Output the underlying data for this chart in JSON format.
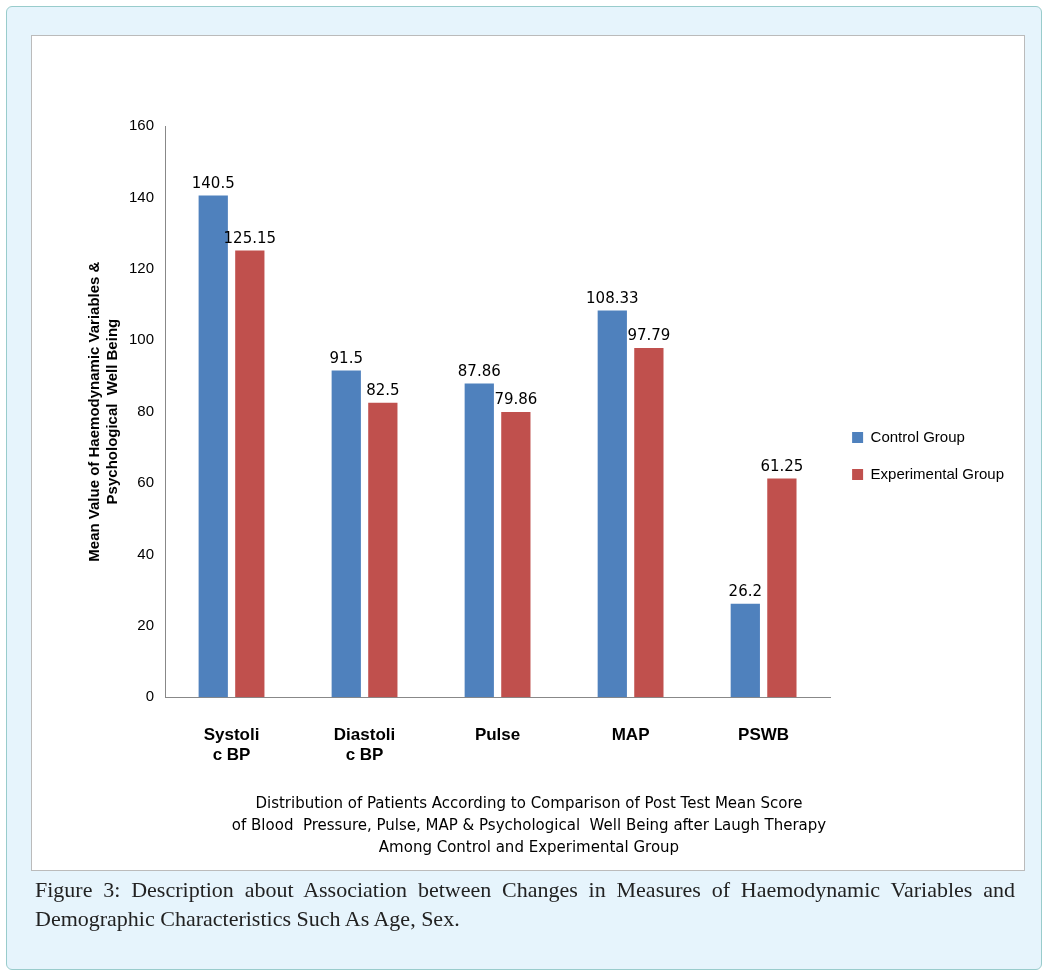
{
  "chart_data": {
    "type": "bar",
    "categories": [
      "Systoli\nc BP",
      "Diastoli\nc BP",
      "Pulse",
      "MAP",
      "PSWB"
    ],
    "series": [
      {
        "name": "Control Group",
        "color": "#4f81bd",
        "values": [
          140.5,
          91.5,
          87.86,
          108.33,
          26.2
        ]
      },
      {
        "name": "Experimental Group",
        "color": "#c0504d",
        "values": [
          125.15,
          82.5,
          79.86,
          97.79,
          61.25
        ]
      }
    ],
    "ylabel": "Mean Value of Haemodynamic Variables &\nPsychological  Well Being",
    "xlabel": "Distribution of Patients According to Comparison of Post Test Mean Score\nof Blood  Pressure, Pulse, MAP & Psychological  Well Being after Laugh Therapy\nAmong Control and Experimental Group",
    "annotations": [
      "Figure 3: Description about Association between Changes in Measures of Haemodynamic Variables and Demographic Characteristics Such As Age, Sex."
    ],
    "ylim": [
      0,
      160
    ],
    "yticks": [
      0,
      20,
      40,
      60,
      80,
      100,
      120,
      140,
      160
    ],
    "grid": false,
    "legend": "right",
    "data_labels": true
  }
}
